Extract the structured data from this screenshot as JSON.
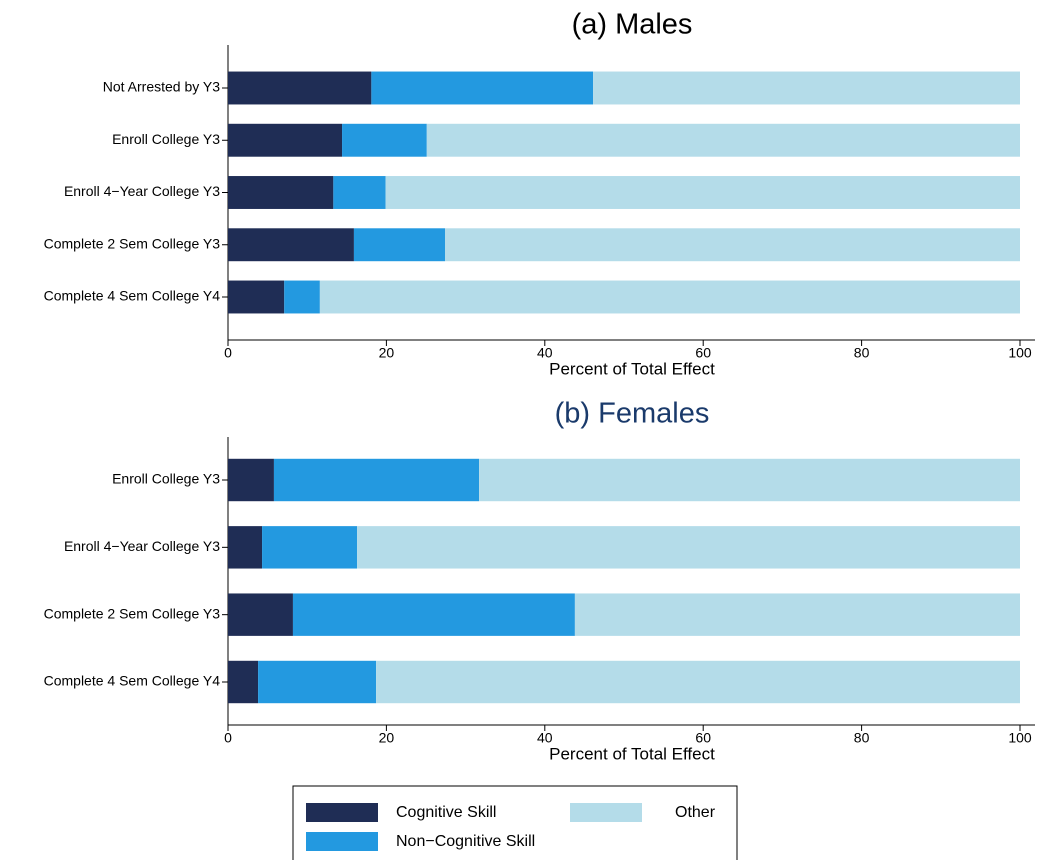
{
  "chart_data": [
    {
      "type": "bar",
      "orientation": "horizontal",
      "stacked": true,
      "title": "(a) Males",
      "title_color": "#000000",
      "xlabel": "Percent of Total Effect",
      "categories": [
        "Not Arrested by Y3",
        "Enroll College Y3",
        "Enroll 4−Year College Y3",
        "Complete 2 Sem College Y3",
        "Complete 4 Sem College Y4"
      ],
      "series": [
        {
          "name": "Cognitive Skill",
          "color": "#1f2d55",
          "values": [
            18.1,
            14.4,
            13.3,
            15.9,
            7.1
          ]
        },
        {
          "name": "Non−Cognitive Skill",
          "color": "#2399e0",
          "values": [
            28.0,
            10.7,
            6.6,
            11.5,
            4.5
          ]
        },
        {
          "name": "Other",
          "color": "#b4dce9",
          "values": [
            53.9,
            74.9,
            80.1,
            72.6,
            88.4
          ]
        }
      ],
      "xlim": [
        0,
        100
      ],
      "xticks": [
        0,
        20,
        40,
        60,
        80,
        100
      ]
    },
    {
      "type": "bar",
      "orientation": "horizontal",
      "stacked": true,
      "title": "(b) Females",
      "title_color": "#1a3a6b",
      "xlabel": "Percent of Total Effect",
      "categories": [
        "Enroll College Y3",
        "Enroll 4−Year College Y3",
        "Complete 2 Sem College Y3",
        "Complete 4 Sem College Y4"
      ],
      "series": [
        {
          "name": "Cognitive Skill",
          "color": "#1f2d55",
          "values": [
            5.8,
            4.3,
            8.2,
            3.8
          ]
        },
        {
          "name": "Non−Cognitive Skill",
          "color": "#2399e0",
          "values": [
            25.9,
            12.0,
            35.6,
            14.9
          ]
        },
        {
          "name": "Other",
          "color": "#b4dce9",
          "values": [
            68.3,
            83.7,
            56.2,
            81.3
          ]
        }
      ],
      "xlim": [
        0,
        100
      ],
      "xticks": [
        0,
        20,
        40,
        60,
        80,
        100
      ]
    }
  ]
}
